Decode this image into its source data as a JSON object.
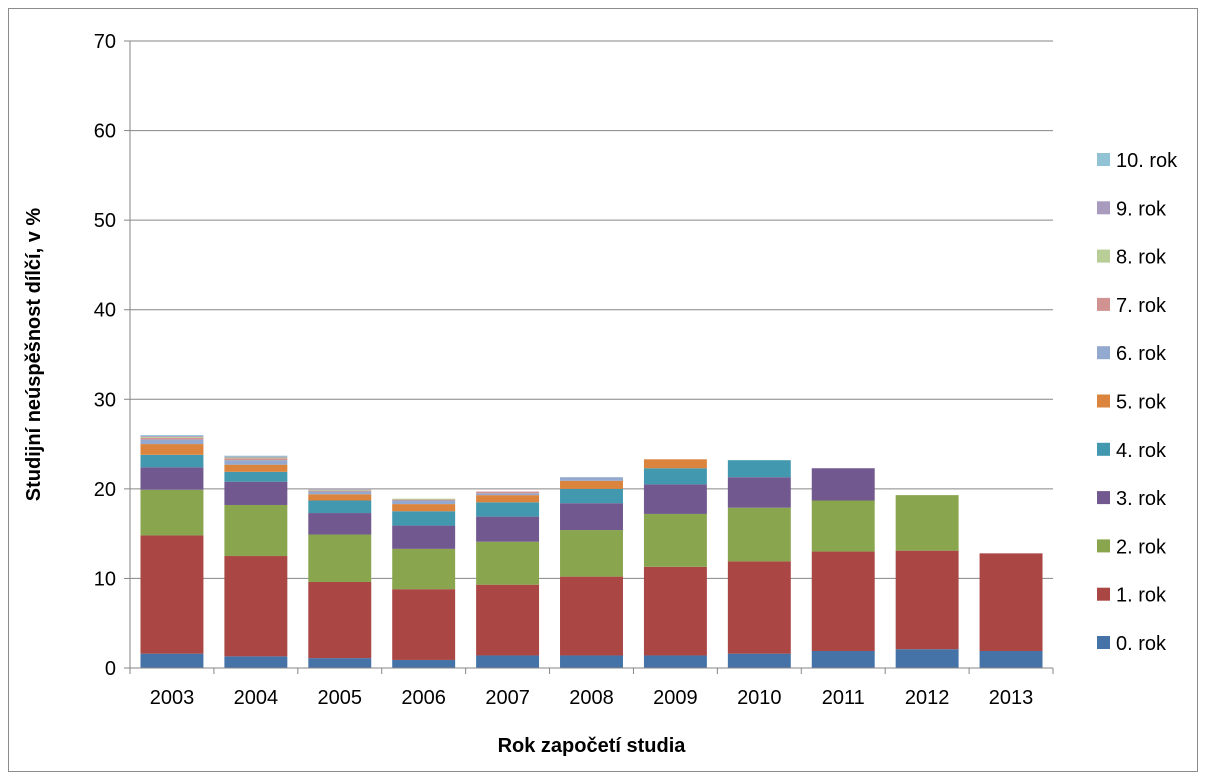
{
  "chart_data": {
    "type": "bar",
    "stacked": true,
    "title": "",
    "xlabel": "Rok započetí studia",
    "ylabel": "Studijní neúspěšnost dílčí, v %",
    "ylim": [
      0,
      70
    ],
    "yticks": [
      0,
      10,
      20,
      30,
      40,
      50,
      60,
      70
    ],
    "grid": true,
    "legend_position": "right",
    "categories": [
      "2003",
      "2004",
      "2005",
      "2006",
      "2007",
      "2008",
      "2009",
      "2010",
      "2011",
      "2012",
      "2013"
    ],
    "series": [
      {
        "name": "0. rok",
        "color": "#4573a7",
        "values": [
          1.6,
          1.3,
          1.1,
          0.9,
          1.4,
          1.4,
          1.4,
          1.6,
          1.9,
          2.1,
          1.9
        ]
      },
      {
        "name": "1. rok",
        "color": "#aa4643",
        "values": [
          13.2,
          11.2,
          8.5,
          7.9,
          7.9,
          8.8,
          9.9,
          10.3,
          11.1,
          11.0,
          10.9
        ]
      },
      {
        "name": "2. rok",
        "color": "#89a54e",
        "values": [
          5.1,
          5.7,
          5.3,
          4.5,
          4.8,
          5.2,
          5.9,
          6.0,
          5.7,
          6.2,
          0
        ]
      },
      {
        "name": "3. rok",
        "color": "#71588f",
        "values": [
          2.5,
          2.6,
          2.4,
          2.6,
          2.8,
          3.0,
          3.3,
          3.4,
          3.6,
          0,
          0
        ]
      },
      {
        "name": "4. rok",
        "color": "#4298af",
        "values": [
          1.4,
          1.1,
          1.4,
          1.6,
          1.6,
          1.6,
          1.8,
          1.9,
          0,
          0,
          0
        ]
      },
      {
        "name": "5. rok",
        "color": "#db843d",
        "values": [
          1.2,
          0.8,
          0.7,
          0.8,
          0.8,
          0.9,
          1.0,
          0,
          0,
          0,
          0
        ]
      },
      {
        "name": "6. rok",
        "color": "#93a9cf",
        "values": [
          0.5,
          0.5,
          0.3,
          0.4,
          0.2,
          0.4,
          0,
          0,
          0,
          0,
          0
        ]
      },
      {
        "name": "7. rok",
        "color": "#d19392",
        "values": [
          0.2,
          0.2,
          0.1,
          0.1,
          0.2,
          0,
          0,
          0,
          0,
          0,
          0
        ]
      },
      {
        "name": "8. rok",
        "color": "#b9cd96",
        "values": [
          0.1,
          0.1,
          0.1,
          0.1,
          0,
          0,
          0,
          0,
          0,
          0,
          0
        ]
      },
      {
        "name": "9. rok",
        "color": "#a99bbd",
        "values": [
          0.1,
          0.1,
          0.1,
          0,
          0,
          0,
          0,
          0,
          0,
          0,
          0
        ]
      },
      {
        "name": "10. rok",
        "color": "#91c3d5",
        "values": [
          0.1,
          0.1,
          0,
          0,
          0,
          0,
          0,
          0,
          0,
          0,
          0
        ]
      }
    ]
  }
}
